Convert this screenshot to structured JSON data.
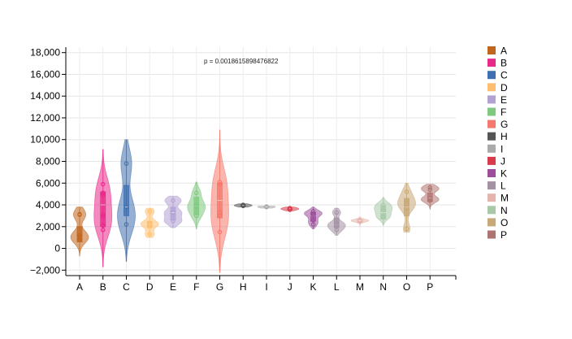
{
  "chart_data": {
    "type": "violin",
    "annotation": "p = 0.0018615898476822",
    "ylim": [
      -2500,
      18500
    ],
    "yticks": [
      -2000,
      0,
      2000,
      4000,
      6000,
      8000,
      10000,
      12000,
      14000,
      16000,
      18000
    ],
    "ytick_labels": [
      "−2,000",
      "0",
      "2,000",
      "4,000",
      "6,000",
      "8,000",
      "10,000",
      "12,000",
      "14,000",
      "16,000",
      "18,000"
    ],
    "grid": true,
    "legend_position": "right",
    "categories": [
      "A",
      "B",
      "C",
      "D",
      "E",
      "F",
      "G",
      "H",
      "I",
      "J",
      "K",
      "L",
      "M",
      "N",
      "O",
      "P"
    ],
    "series": [
      {
        "name": "A",
        "color": "#c0651b",
        "points": [
          850,
          1050,
          1200,
          3100,
          3150
        ],
        "min": -700,
        "max": 3800,
        "q1": 600,
        "median": 1000,
        "q3": 2000
      },
      {
        "name": "B",
        "color": "#e7298a",
        "points": [
          1700,
          2100,
          2900,
          3100,
          4900,
          5100,
          5900
        ],
        "min": -1700,
        "max": 9100,
        "q1": 2000,
        "median": 4000,
        "q3": 5200
      },
      {
        "name": "C",
        "color": "#3f6fb0",
        "points": [
          2200,
          3800,
          7800
        ],
        "min": -1200,
        "max": 10000,
        "q1": 3000,
        "median": 3800,
        "q3": 5800
      },
      {
        "name": "D",
        "color": "#fdbf6f",
        "points": [
          1300,
          2200,
          2300,
          3400
        ],
        "min": 1000,
        "max": 3700,
        "q1": 1900,
        "median": 2200,
        "q3": 2500
      },
      {
        "name": "E",
        "color": "#b2a1d3",
        "points": [
          2500,
          3300,
          4400
        ],
        "min": 1900,
        "max": 4800,
        "q1": 2600,
        "median": 3300,
        "q3": 3800
      },
      {
        "name": "F",
        "color": "#7fc97f",
        "points": [
          3000,
          3800,
          4000,
          5100
        ],
        "min": 1800,
        "max": 6100,
        "q1": 3100,
        "median": 3900,
        "q3": 4700
      },
      {
        "name": "G",
        "color": "#f4786b",
        "points": [
          1500,
          3000,
          3300,
          5900,
          6100
        ],
        "min": -2200,
        "max": 10900,
        "q1": 2800,
        "median": 4400,
        "q3": 6000
      },
      {
        "name": "H",
        "color": "#555555",
        "points": [
          3900,
          4000,
          3950
        ],
        "min": 3800,
        "max": 4100,
        "q1": 3880,
        "median": 3950,
        "q3": 4020
      },
      {
        "name": "I",
        "color": "#aaaaaa",
        "points": [
          3800,
          3850
        ],
        "min": 3700,
        "max": 3900,
        "q1": 3780,
        "median": 3820,
        "q3": 3870
      },
      {
        "name": "J",
        "color": "#d93b4a",
        "points": [
          3550,
          3700,
          3650
        ],
        "min": 3450,
        "max": 3800,
        "q1": 3550,
        "median": 3650,
        "q3": 3700
      },
      {
        "name": "K",
        "color": "#9c4e9b",
        "points": [
          2200,
          2600,
          3100,
          3400,
          3200
        ],
        "min": 1800,
        "max": 3800,
        "q1": 2500,
        "median": 3000,
        "q3": 3300
      },
      {
        "name": "L",
        "color": "#a392a3",
        "points": [
          1700,
          2100,
          2300,
          3300
        ],
        "min": 1200,
        "max": 3700,
        "q1": 1900,
        "median": 2200,
        "q3": 2800
      },
      {
        "name": "M",
        "color": "#e6b4ac",
        "points": [
          2500,
          2600
        ],
        "min": 2000,
        "max": 2900,
        "q1": 2400,
        "median": 2550,
        "q3": 2650
      },
      {
        "name": "N",
        "color": "#a8c8a8",
        "points": [
          2900,
          3500,
          4000
        ],
        "min": 2100,
        "max": 4700,
        "q1": 2700,
        "median": 3300,
        "q3": 3900
      },
      {
        "name": "O",
        "color": "#c8a876",
        "points": [
          1800,
          3700,
          4100,
          4400,
          5200
        ],
        "min": 1500,
        "max": 6000,
        "q1": 3000,
        "median": 3800,
        "q3": 4600
      },
      {
        "name": "P",
        "color": "#b07470",
        "points": [
          4400,
          4600,
          5400,
          5600
        ],
        "min": 3600,
        "max": 5900,
        "q1": 4300,
        "median": 4600,
        "q3": 5100
      }
    ]
  }
}
